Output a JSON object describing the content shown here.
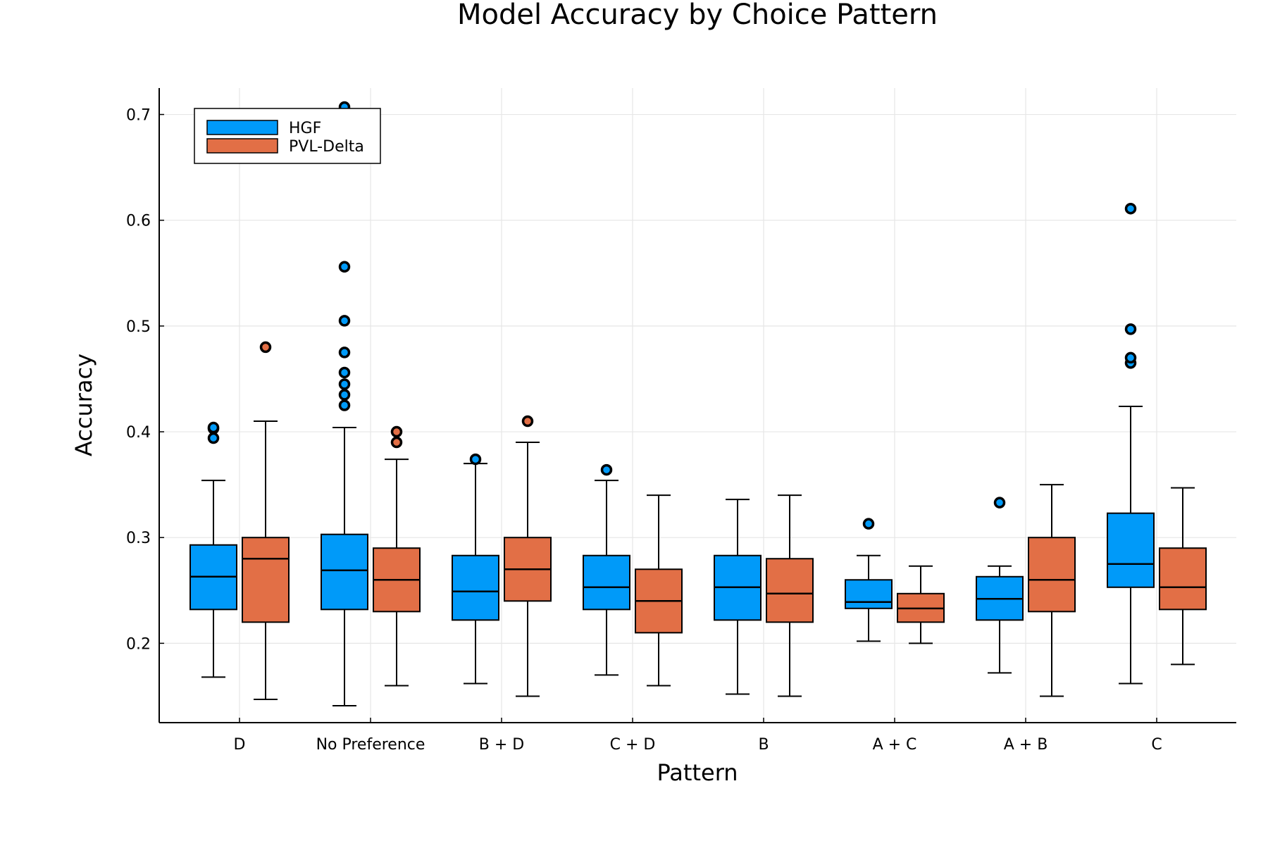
{
  "chart_data": {
    "type": "box",
    "title": "Model Accuracy by Choice Pattern",
    "xlabel": "Pattern",
    "ylabel": "Accuracy",
    "ylim": [
      0.125,
      0.725
    ],
    "yticks": [
      0.2,
      0.3,
      0.4,
      0.5,
      0.6,
      0.7
    ],
    "ytick_labels": [
      "0.2",
      "0.3",
      "0.4",
      "0.5",
      "0.6",
      "0.7"
    ],
    "grid": true,
    "legend_position": "top-left",
    "categories": [
      "D",
      "No Preference",
      "B + D",
      "C + D",
      "B",
      "A + C",
      "A + B",
      "C"
    ],
    "series": [
      {
        "name": "HGF",
        "color": "#009af9",
        "boxes": [
          {
            "whisker_low": 0.168,
            "q1": 0.232,
            "median": 0.263,
            "q3": 0.293,
            "whisker_high": 0.354,
            "outliers": [
              0.394,
              0.403,
              0.404
            ]
          },
          {
            "whisker_low": 0.141,
            "q1": 0.232,
            "median": 0.269,
            "q3": 0.303,
            "whisker_high": 0.404,
            "outliers": [
              0.425,
              0.435,
              0.445,
              0.456,
              0.475,
              0.505,
              0.556,
              0.707
            ]
          },
          {
            "whisker_low": 0.162,
            "q1": 0.222,
            "median": 0.249,
            "q3": 0.283,
            "whisker_high": 0.37,
            "outliers": [
              0.374
            ]
          },
          {
            "whisker_low": 0.17,
            "q1": 0.232,
            "median": 0.253,
            "q3": 0.283,
            "whisker_high": 0.354,
            "outliers": [
              0.364
            ]
          },
          {
            "whisker_low": 0.152,
            "q1": 0.222,
            "median": 0.253,
            "q3": 0.283,
            "whisker_high": 0.336,
            "outliers": []
          },
          {
            "whisker_low": 0.202,
            "q1": 0.233,
            "median": 0.239,
            "q3": 0.26,
            "whisker_high": 0.283,
            "outliers": [
              0.313
            ]
          },
          {
            "whisker_low": 0.172,
            "q1": 0.222,
            "median": 0.242,
            "q3": 0.263,
            "whisker_high": 0.273,
            "outliers": [
              0.333
            ]
          },
          {
            "whisker_low": 0.162,
            "q1": 0.253,
            "median": 0.275,
            "q3": 0.323,
            "whisker_high": 0.424,
            "outliers": [
              0.465,
              0.47,
              0.497,
              0.611
            ]
          }
        ]
      },
      {
        "name": "PVL-Delta",
        "color": "#e26f46",
        "boxes": [
          {
            "whisker_low": 0.147,
            "q1": 0.22,
            "median": 0.28,
            "q3": 0.3,
            "whisker_high": 0.41,
            "outliers": [
              0.48
            ]
          },
          {
            "whisker_low": 0.16,
            "q1": 0.23,
            "median": 0.26,
            "q3": 0.29,
            "whisker_high": 0.374,
            "outliers": [
              0.39,
              0.4
            ]
          },
          {
            "whisker_low": 0.15,
            "q1": 0.24,
            "median": 0.27,
            "q3": 0.3,
            "whisker_high": 0.39,
            "outliers": [
              0.41
            ]
          },
          {
            "whisker_low": 0.16,
            "q1": 0.21,
            "median": 0.24,
            "q3": 0.27,
            "whisker_high": 0.34,
            "outliers": []
          },
          {
            "whisker_low": 0.15,
            "q1": 0.22,
            "median": 0.247,
            "q3": 0.28,
            "whisker_high": 0.34,
            "outliers": []
          },
          {
            "whisker_low": 0.2,
            "q1": 0.22,
            "median": 0.233,
            "q3": 0.247,
            "whisker_high": 0.273,
            "outliers": []
          },
          {
            "whisker_low": 0.15,
            "q1": 0.23,
            "median": 0.26,
            "q3": 0.3,
            "whisker_high": 0.35,
            "outliers": []
          },
          {
            "whisker_low": 0.18,
            "q1": 0.232,
            "median": 0.253,
            "q3": 0.29,
            "whisker_high": 0.347,
            "outliers": []
          }
        ]
      }
    ]
  }
}
